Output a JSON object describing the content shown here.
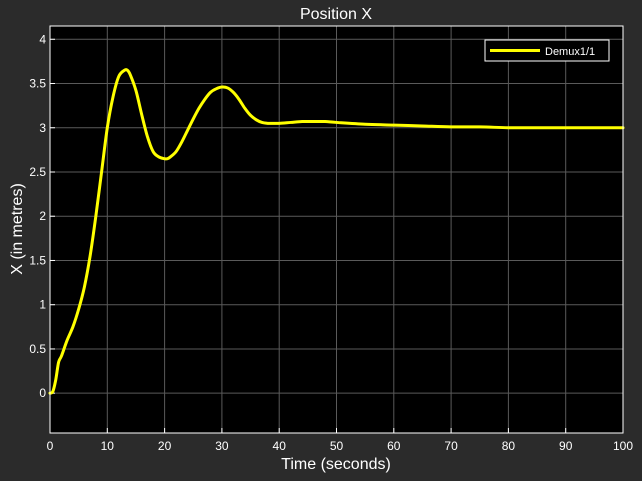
{
  "chart_data": {
    "type": "line",
    "title": "Position X",
    "xlabel": "Time (seconds)",
    "ylabel": "X (in metres)",
    "xlim": [
      0,
      100
    ],
    "ylim": [
      -0.45,
      4.15
    ],
    "xticks": [
      "0",
      "10",
      "20",
      "30",
      "40",
      "50",
      "60",
      "70",
      "80",
      "90",
      "100"
    ],
    "yticks": [
      "0",
      "0.5",
      "1",
      "1.5",
      "2",
      "2.5",
      "3",
      "3.5",
      "4"
    ],
    "grid": true,
    "legend_position": "top-right",
    "series": [
      {
        "name": "Demux1/1",
        "color": "#ffff00",
        "x": [
          0,
          0.5,
          1,
          1.5,
          2,
          3,
          4,
          5,
          6,
          7,
          8,
          9,
          10,
          11,
          12,
          13,
          13.5,
          14,
          15,
          16,
          17,
          18,
          19,
          20,
          20.5,
          21,
          22,
          23,
          24,
          25,
          26,
          27,
          28,
          29,
          30,
          31,
          32,
          33,
          34,
          35,
          36,
          37,
          38,
          39,
          40,
          42,
          44,
          46,
          48,
          50,
          55,
          60,
          65,
          70,
          75,
          80,
          85,
          90,
          95,
          100
        ],
        "y": [
          0,
          0.02,
          0.15,
          0.35,
          0.42,
          0.6,
          0.75,
          0.95,
          1.2,
          1.55,
          2.0,
          2.5,
          3.0,
          3.35,
          3.58,
          3.65,
          3.65,
          3.6,
          3.42,
          3.15,
          2.9,
          2.73,
          2.67,
          2.65,
          2.65,
          2.67,
          2.73,
          2.84,
          2.97,
          3.1,
          3.22,
          3.32,
          3.4,
          3.44,
          3.46,
          3.45,
          3.4,
          3.32,
          3.22,
          3.14,
          3.09,
          3.06,
          3.05,
          3.05,
          3.05,
          3.06,
          3.07,
          3.07,
          3.07,
          3.06,
          3.04,
          3.03,
          3.02,
          3.01,
          3.01,
          3.0,
          3.0,
          3.0,
          3.0,
          3.0
        ]
      }
    ]
  }
}
